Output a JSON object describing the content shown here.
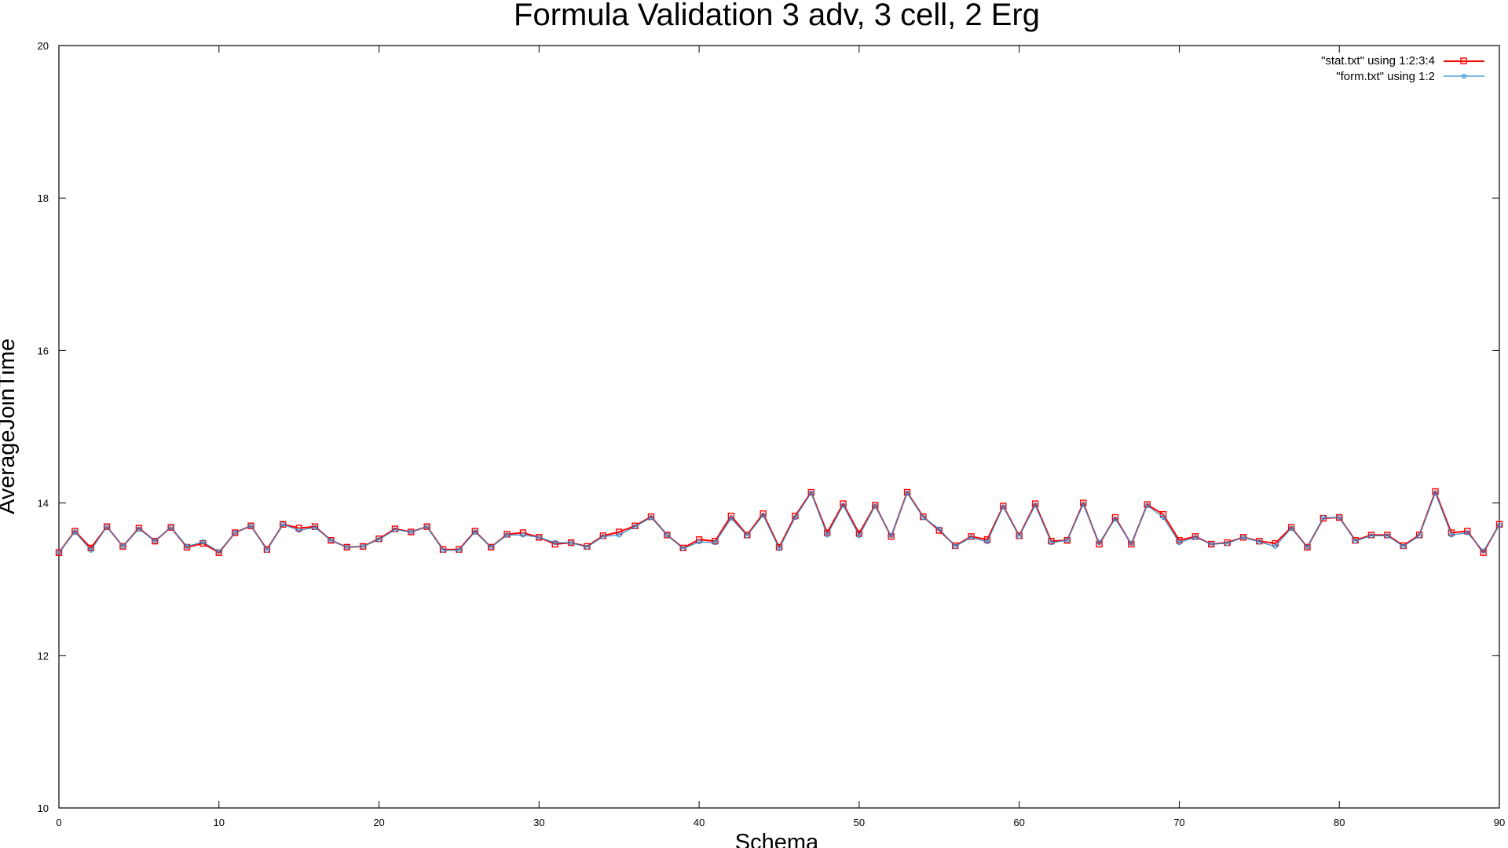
{
  "chart_data": {
    "type": "line",
    "title": "Formula Validation 3 adv, 3 cell, 2 Erg",
    "xlabel": "Schema",
    "ylabel": "AverageJoinTime",
    "xlim": [
      0,
      90
    ],
    "ylim": [
      10,
      20
    ],
    "xticks": [
      0,
      10,
      20,
      30,
      40,
      50,
      60,
      70,
      80,
      90
    ],
    "yticks": [
      10,
      12,
      14,
      16,
      18,
      20
    ],
    "grid": false,
    "legend_position": "top-right",
    "x": [
      0,
      1,
      2,
      3,
      4,
      5,
      6,
      7,
      8,
      9,
      10,
      11,
      12,
      13,
      14,
      15,
      16,
      17,
      18,
      19,
      20,
      21,
      22,
      23,
      24,
      25,
      26,
      27,
      28,
      29,
      30,
      31,
      32,
      33,
      34,
      35,
      36,
      37,
      38,
      39,
      40,
      41,
      42,
      43,
      44,
      45,
      46,
      47,
      48,
      49,
      50,
      51,
      52,
      53,
      54,
      55,
      56,
      57,
      58,
      59,
      60,
      61,
      62,
      63,
      64,
      65,
      66,
      67,
      68,
      69,
      70,
      71,
      72,
      73,
      74,
      75,
      76,
      77,
      78,
      79,
      80,
      81,
      82,
      83,
      84,
      85,
      86,
      87,
      88,
      89,
      90
    ],
    "series": [
      {
        "name": "\"stat.txt\" using 1:2:3:4",
        "color": "#ff0000",
        "marker": "square",
        "values": [
          13.35,
          13.63,
          13.41,
          13.69,
          13.43,
          13.67,
          13.5,
          13.68,
          13.42,
          13.47,
          13.35,
          13.61,
          13.7,
          13.39,
          13.72,
          13.67,
          13.69,
          13.51,
          13.42,
          13.43,
          13.53,
          13.66,
          13.62,
          13.69,
          13.39,
          13.39,
          13.63,
          13.42,
          13.59,
          13.61,
          13.55,
          13.46,
          13.48,
          13.43,
          13.57,
          13.62,
          13.7,
          13.82,
          13.58,
          13.41,
          13.52,
          13.5,
          13.83,
          13.58,
          13.86,
          13.42,
          13.83,
          14.14,
          13.61,
          13.99,
          13.6,
          13.97,
          13.56,
          14.14,
          13.82,
          13.64,
          13.44,
          13.56,
          13.52,
          13.96,
          13.57,
          13.99,
          13.5,
          13.51,
          14.0,
          13.46,
          13.81,
          13.46,
          13.98,
          13.85,
          13.51,
          13.56,
          13.46,
          13.48,
          13.55,
          13.5,
          13.47,
          13.68,
          13.42,
          13.8,
          13.81,
          13.51,
          13.58,
          13.58,
          13.44,
          13.58,
          14.15,
          13.61,
          13.63,
          13.35,
          13.72
        ]
      },
      {
        "name": "\"form.txt\" using 1:2",
        "color": "#2e8fd0",
        "marker": "circle",
        "values": [
          13.35,
          13.62,
          13.38,
          13.69,
          13.43,
          13.66,
          13.5,
          13.68,
          13.43,
          13.49,
          13.36,
          13.61,
          13.7,
          13.38,
          13.72,
          13.64,
          13.68,
          13.51,
          13.42,
          13.43,
          13.52,
          13.65,
          13.62,
          13.69,
          13.38,
          13.38,
          13.62,
          13.42,
          13.58,
          13.58,
          13.55,
          13.48,
          13.48,
          13.42,
          13.56,
          13.58,
          13.69,
          13.81,
          13.58,
          13.4,
          13.49,
          13.48,
          13.8,
          13.57,
          13.84,
          13.4,
          13.81,
          14.13,
          13.58,
          13.97,
          13.57,
          13.96,
          13.57,
          14.13,
          13.81,
          13.66,
          13.43,
          13.55,
          13.49,
          13.95,
          13.56,
          13.97,
          13.48,
          13.51,
          13.98,
          13.48,
          13.79,
          13.47,
          13.97,
          13.81,
          13.48,
          13.55,
          13.46,
          13.47,
          13.55,
          13.49,
          13.43,
          13.67,
          13.42,
          13.81,
          13.81,
          13.5,
          13.57,
          13.57,
          13.43,
          13.57,
          14.13,
          13.58,
          13.61,
          13.37,
          13.71
        ]
      }
    ]
  }
}
